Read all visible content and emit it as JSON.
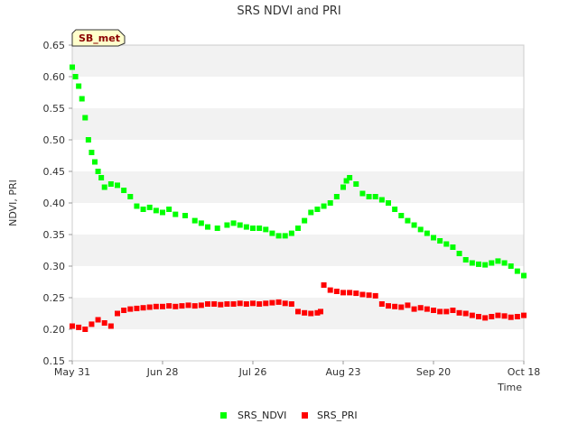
{
  "chart_data": {
    "type": "scatter",
    "title": "SRS NDVI and PRI",
    "xlabel": "Time",
    "ylabel": "NDVI, PRI",
    "site_badge": "SB_met",
    "x_ticks": [
      "May 31",
      "Jun 28",
      "Jul 26",
      "Aug 23",
      "Sep 20",
      "Oct 18"
    ],
    "x_tick_days": [
      0,
      28,
      56,
      84,
      112,
      140
    ],
    "xlim": [
      0,
      140
    ],
    "ylim": [
      0.15,
      0.65
    ],
    "y_ticks": [
      0.15,
      0.2,
      0.25,
      0.3,
      0.35,
      0.4,
      0.45,
      0.5,
      0.55,
      0.6,
      0.65
    ],
    "y_tick_labels": [
      "0.15",
      "0.20",
      "0.25",
      "0.30",
      "0.35",
      "0.40",
      "0.45",
      "0.50",
      "0.55",
      "0.60",
      "0.65"
    ],
    "grid": "alternating horizontal bands",
    "legend_position": "bottom-center",
    "series": [
      {
        "name": "SRS_NDVI",
        "color": "#00ff00",
        "x": [
          0,
          1,
          2,
          3,
          4,
          5,
          6,
          7,
          8,
          9,
          10,
          12,
          14,
          16,
          18,
          20,
          22,
          24,
          26,
          28,
          30,
          32,
          35,
          38,
          40,
          42,
          45,
          48,
          50,
          52,
          54,
          56,
          58,
          60,
          62,
          64,
          66,
          68,
          70,
          72,
          74,
          76,
          78,
          80,
          82,
          84,
          85,
          86,
          88,
          90,
          92,
          94,
          96,
          98,
          100,
          102,
          104,
          106,
          108,
          110,
          112,
          114,
          116,
          118,
          120,
          122,
          124,
          126,
          128,
          130,
          132,
          134,
          136,
          138,
          140
        ],
        "y": [
          0.615,
          0.6,
          0.585,
          0.565,
          0.535,
          0.5,
          0.48,
          0.465,
          0.45,
          0.44,
          0.425,
          0.43,
          0.428,
          0.42,
          0.41,
          0.395,
          0.39,
          0.393,
          0.388,
          0.385,
          0.39,
          0.382,
          0.38,
          0.372,
          0.368,
          0.362,
          0.36,
          0.365,
          0.368,
          0.365,
          0.362,
          0.36,
          0.36,
          0.358,
          0.352,
          0.348,
          0.348,
          0.352,
          0.36,
          0.372,
          0.385,
          0.39,
          0.395,
          0.4,
          0.41,
          0.425,
          0.435,
          0.44,
          0.43,
          0.415,
          0.41,
          0.41,
          0.405,
          0.4,
          0.39,
          0.38,
          0.372,
          0.365,
          0.358,
          0.352,
          0.345,
          0.34,
          0.335,
          0.33,
          0.32,
          0.31,
          0.305,
          0.303,
          0.302,
          0.305,
          0.308,
          0.305,
          0.3,
          0.292,
          0.285
        ]
      },
      {
        "name": "SRS_PRI",
        "color": "#ff0000",
        "x": [
          0,
          2,
          4,
          6,
          8,
          10,
          12,
          14,
          16,
          18,
          20,
          22,
          24,
          26,
          28,
          30,
          32,
          34,
          36,
          38,
          40,
          42,
          44,
          46,
          48,
          50,
          52,
          54,
          56,
          58,
          60,
          62,
          64,
          66,
          68,
          70,
          72,
          74,
          76,
          77,
          78,
          80,
          82,
          84,
          86,
          88,
          90,
          92,
          94,
          96,
          98,
          100,
          102,
          104,
          106,
          108,
          110,
          112,
          114,
          116,
          118,
          120,
          122,
          124,
          126,
          128,
          130,
          132,
          134,
          136,
          138,
          140
        ],
        "y": [
          0.205,
          0.203,
          0.2,
          0.208,
          0.215,
          0.21,
          0.205,
          0.225,
          0.23,
          0.232,
          0.233,
          0.234,
          0.235,
          0.236,
          0.236,
          0.237,
          0.236,
          0.237,
          0.238,
          0.237,
          0.238,
          0.24,
          0.24,
          0.239,
          0.24,
          0.24,
          0.241,
          0.24,
          0.241,
          0.24,
          0.241,
          0.242,
          0.243,
          0.241,
          0.24,
          0.228,
          0.226,
          0.225,
          0.226,
          0.228,
          0.27,
          0.262,
          0.26,
          0.258,
          0.258,
          0.257,
          0.255,
          0.254,
          0.253,
          0.24,
          0.237,
          0.236,
          0.235,
          0.238,
          0.232,
          0.234,
          0.232,
          0.23,
          0.228,
          0.228,
          0.23,
          0.226,
          0.225,
          0.222,
          0.22,
          0.218,
          0.22,
          0.222,
          0.221,
          0.219,
          0.22,
          0.222
        ]
      }
    ]
  }
}
